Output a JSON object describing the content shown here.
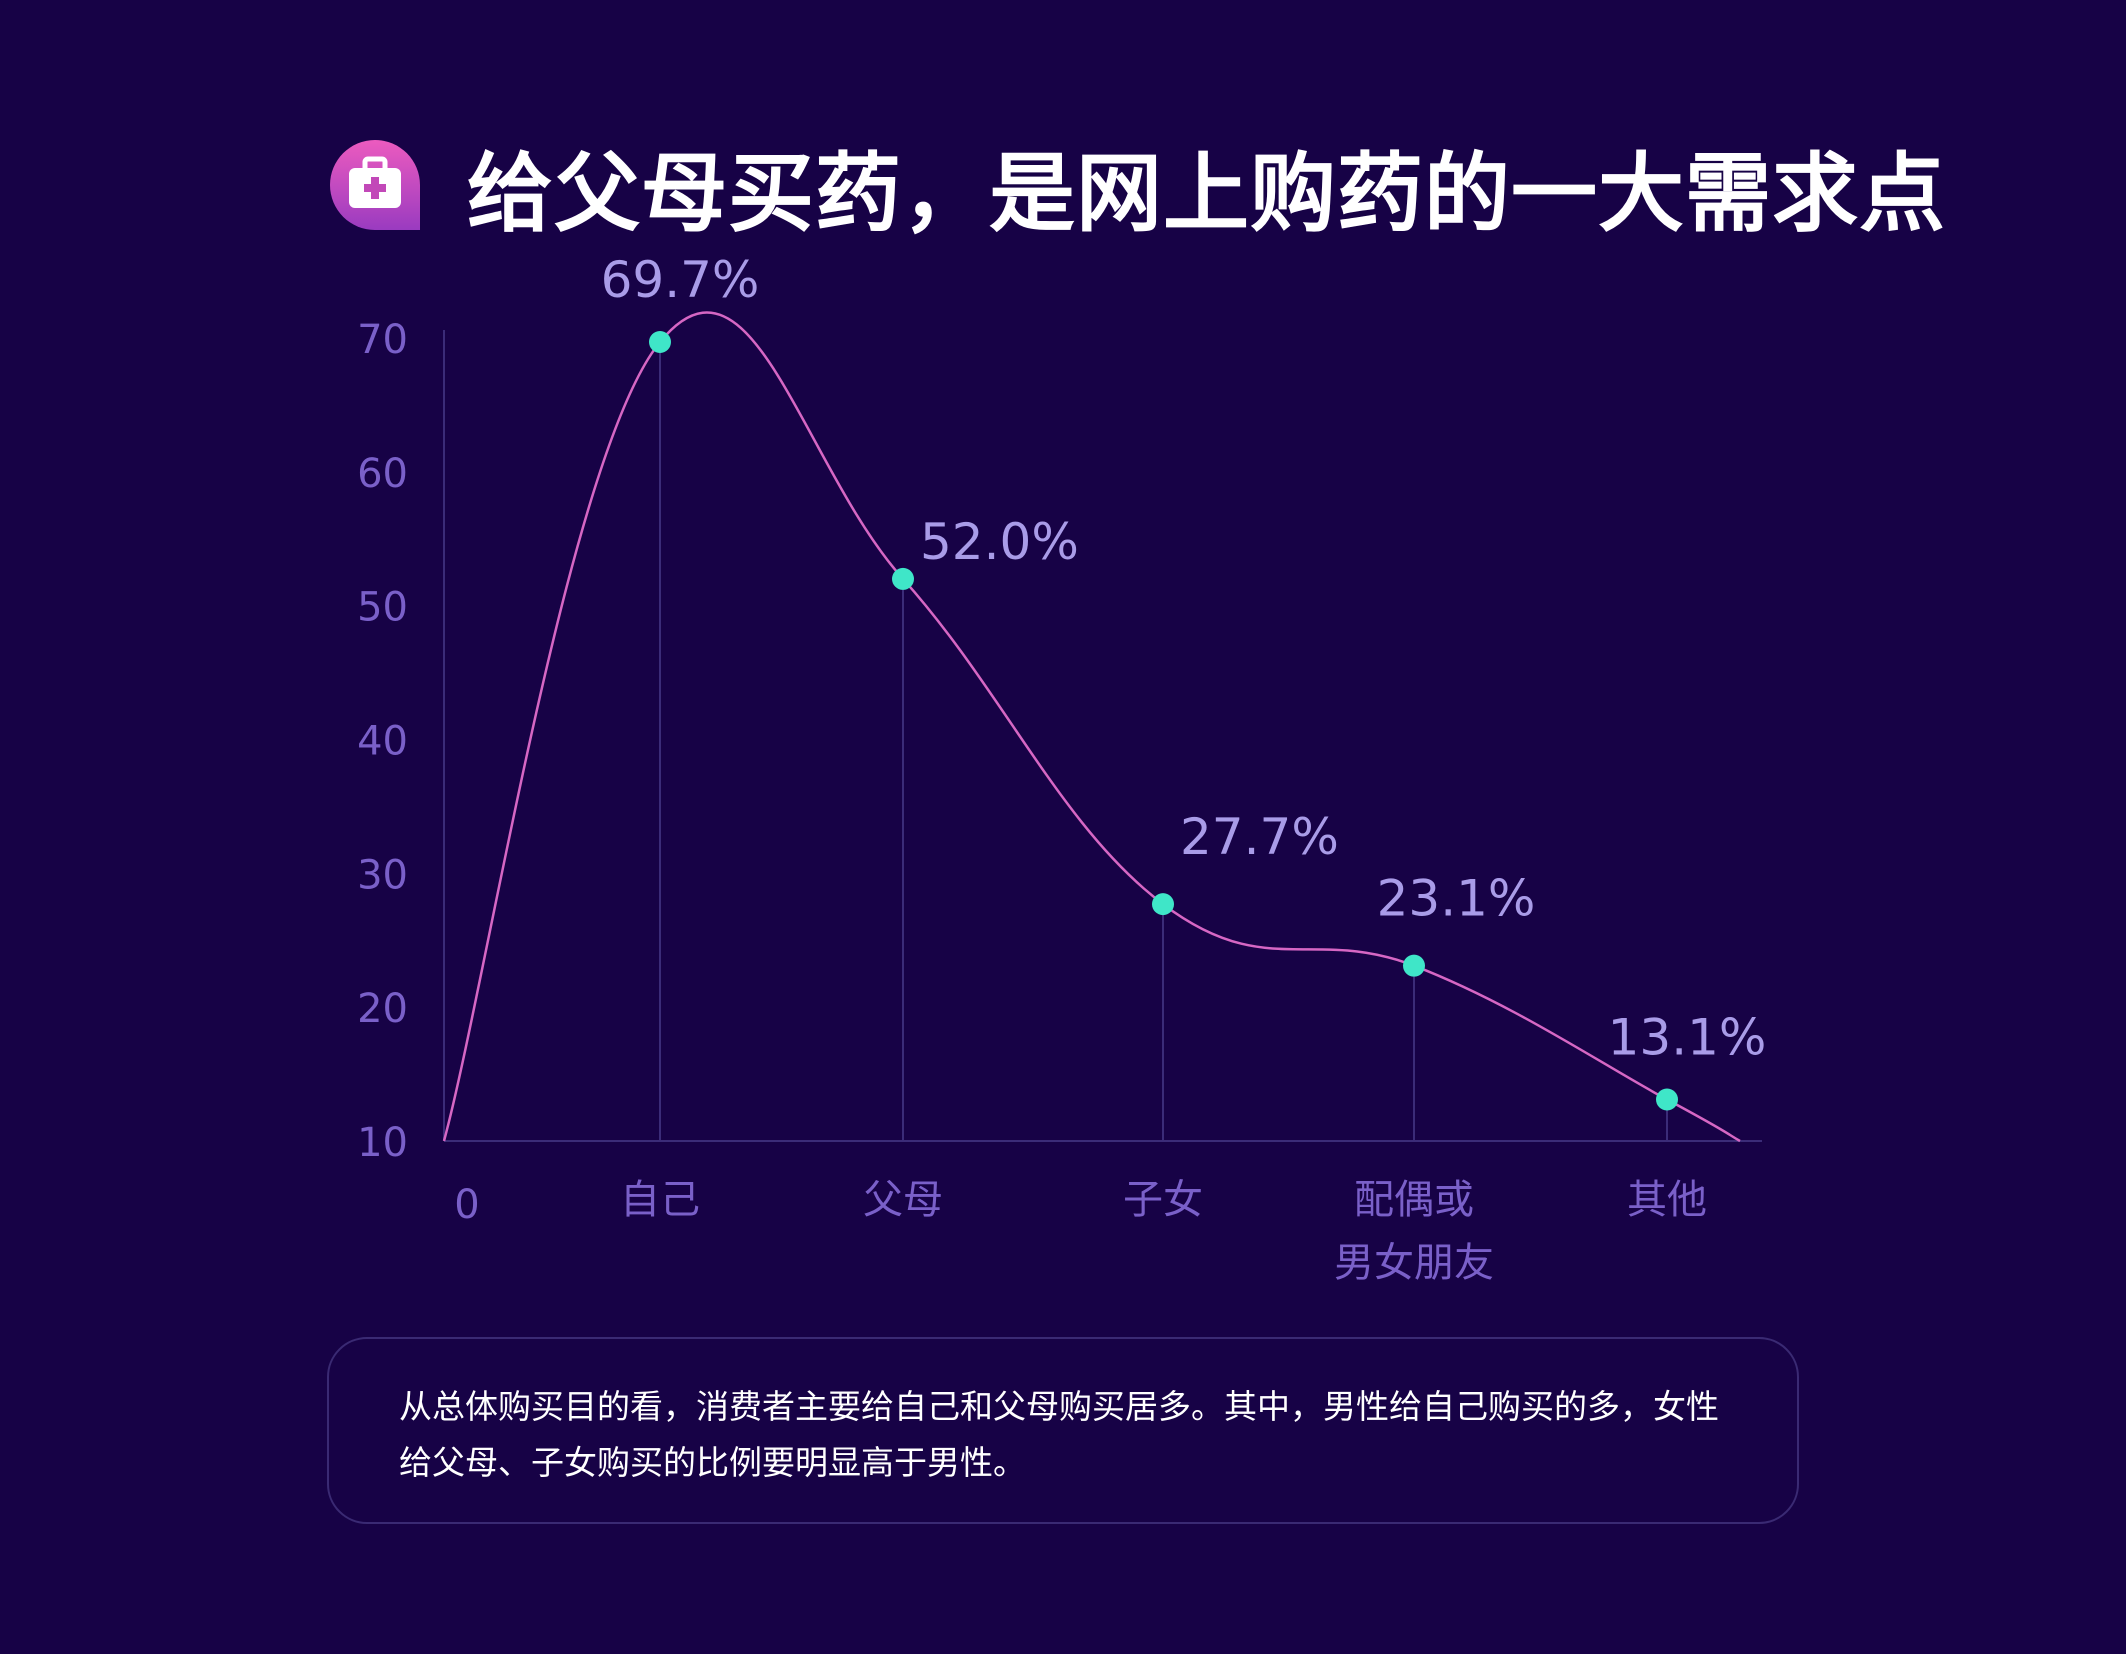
{
  "title": "给父母买药，是网上购药的一大需求点",
  "icon": "medical-kit-icon",
  "colors": {
    "background": "#170246",
    "curve": "#d667c4",
    "point": "#3fe6c8",
    "axis_text": "#7a60c9",
    "value_text": "#a99ce8",
    "badge_top": "#ec5bbf",
    "badge_bottom": "#9a3bc0"
  },
  "chart_data": {
    "type": "line",
    "categories": [
      "自己",
      "父母",
      "子女",
      "配偶或\n男女朋友",
      "其他"
    ],
    "values": [
      69.7,
      52.0,
      27.7,
      23.1,
      13.1
    ],
    "value_labels": [
      "69.7%",
      "52.0%",
      "27.7%",
      "23.1%",
      "13.1%"
    ],
    "y_ticks": [
      10,
      20,
      30,
      40,
      50,
      60,
      70
    ],
    "x_origin_label": "0",
    "ylim": [
      10,
      70
    ],
    "smooth": true,
    "grid": false,
    "drop_lines": true
  },
  "note": "从总体购买目的看，消费者主要给自己和父母购买居多。其中，男性给自己购买的多，女性给父母、子女购买的比例要明显高于男性。"
}
